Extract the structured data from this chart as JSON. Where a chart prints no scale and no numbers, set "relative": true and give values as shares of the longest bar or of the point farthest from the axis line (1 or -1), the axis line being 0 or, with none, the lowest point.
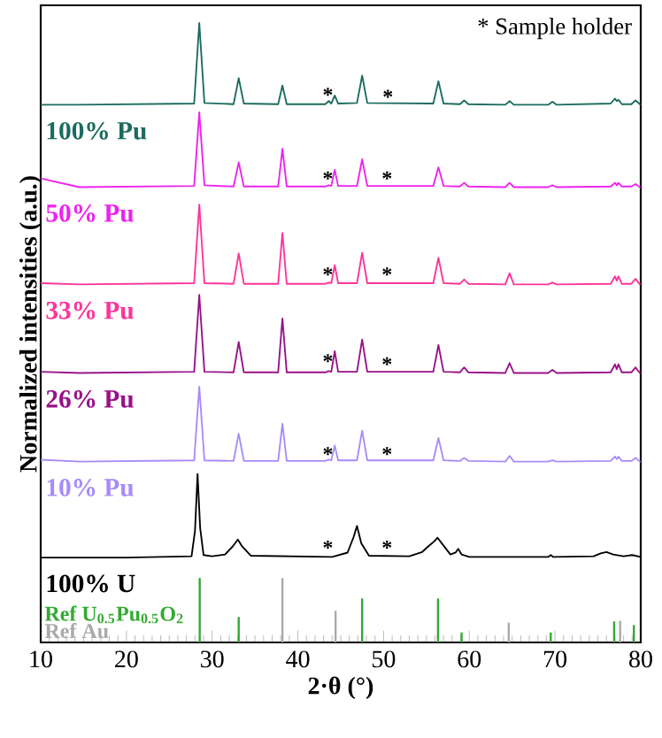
{
  "chart_data": {
    "type": "line",
    "relative": true,
    "xlabel": "2·θ (°)",
    "ylabel": "Normalized intensities (a.u.)",
    "xlim": [
      10,
      80
    ],
    "xticks": [
      10,
      20,
      30,
      40,
      50,
      60,
      70,
      80
    ],
    "grid": false,
    "marker": "none",
    "line_style": "solid",
    "x": [
      10,
      14.5,
      27.9,
      28.5,
      29.1,
      32.5,
      33.1,
      33.7,
      37.7,
      38.2,
      38.7,
      43.2,
      43.6,
      43.9,
      44.3,
      44.7,
      46.9,
      47.5,
      48.1,
      55.8,
      56.4,
      57.0,
      58.9,
      59.4,
      59.9,
      64.2,
      64.7,
      65.2,
      69.2,
      69.7,
      70.2,
      76.5,
      77.0,
      77.2,
      77.4,
      77.8,
      78.9,
      79.4,
      79.9,
      80
    ],
    "series": [
      {
        "name": "100% Pu",
        "color": "#1b6b5e",
        "values": [
          0.868,
          0.868,
          0.87,
          1.0,
          0.871,
          0.869,
          0.911,
          0.87,
          0.869,
          0.899,
          0.869,
          0.869,
          0.874,
          0.87,
          0.883,
          0.87,
          0.871,
          0.915,
          0.871,
          0.87,
          0.906,
          0.87,
          0.869,
          0.875,
          0.869,
          0.868,
          0.874,
          0.868,
          0.868,
          0.873,
          0.868,
          0.87,
          0.878,
          0.874,
          0.876,
          0.869,
          0.869,
          0.875,
          0.869,
          0.869
        ]
      },
      {
        "name": "50% Pu",
        "color": "#ee22ee",
        "values": [
          0.749,
          0.735,
          0.737,
          0.856,
          0.738,
          0.736,
          0.775,
          0.736,
          0.736,
          0.797,
          0.736,
          0.736,
          0.738,
          0.737,
          0.763,
          0.737,
          0.737,
          0.78,
          0.737,
          0.737,
          0.767,
          0.737,
          0.736,
          0.742,
          0.736,
          0.735,
          0.742,
          0.735,
          0.735,
          0.738,
          0.735,
          0.736,
          0.742,
          0.738,
          0.742,
          0.736,
          0.736,
          0.74,
          0.735,
          0.735
        ]
      },
      {
        "name": "33% Pu",
        "color": "#ff3399",
        "values": [
          0.58,
          0.578,
          0.58,
          0.707,
          0.58,
          0.579,
          0.628,
          0.579,
          0.579,
          0.661,
          0.579,
          0.579,
          0.581,
          0.58,
          0.609,
          0.58,
          0.58,
          0.629,
          0.58,
          0.58,
          0.621,
          0.58,
          0.579,
          0.586,
          0.579,
          0.578,
          0.596,
          0.578,
          0.578,
          0.581,
          0.578,
          0.579,
          0.591,
          0.584,
          0.591,
          0.579,
          0.579,
          0.587,
          0.578,
          0.578
        ]
      },
      {
        "name": "26% Pu",
        "color": "#991188",
        "values": [
          0.437,
          0.435,
          0.437,
          0.561,
          0.437,
          0.436,
          0.485,
          0.436,
          0.436,
          0.523,
          0.436,
          0.436,
          0.438,
          0.437,
          0.47,
          0.437,
          0.437,
          0.489,
          0.437,
          0.437,
          0.48,
          0.437,
          0.436,
          0.444,
          0.436,
          0.435,
          0.451,
          0.435,
          0.435,
          0.44,
          0.435,
          0.436,
          0.449,
          0.441,
          0.449,
          0.436,
          0.436,
          0.444,
          0.435,
          0.435
        ]
      },
      {
        "name": "10% Pu",
        "color": "#a78bfa",
        "values": [
          0.295,
          0.292,
          0.294,
          0.413,
          0.294,
          0.293,
          0.337,
          0.293,
          0.293,
          0.353,
          0.293,
          0.293,
          0.295,
          0.294,
          0.318,
          0.294,
          0.294,
          0.342,
          0.294,
          0.294,
          0.33,
          0.294,
          0.293,
          0.298,
          0.293,
          0.292,
          0.301,
          0.292,
          0.292,
          0.294,
          0.292,
          0.293,
          0.3,
          0.296,
          0.3,
          0.293,
          0.293,
          0.298,
          0.292,
          0.292
        ]
      },
      {
        "name": "100% U",
        "color": "#000000",
        "x": [
          10,
          20,
          27.6,
          28.0,
          28.3,
          28.6,
          29.0,
          30.0,
          31.5,
          32.4,
          33.0,
          33.5,
          34.5,
          44.0,
          45.8,
          46.5,
          46.9,
          47.4,
          48.3,
          53.0,
          54.5,
          55.3,
          55.9,
          56.3,
          56.9,
          57.8,
          58.4,
          58.7,
          59.1,
          60,
          69.2,
          69.5,
          69.8,
          74.5,
          75.4,
          76.0,
          76.8,
          78.0,
          79.0,
          80
        ],
        "values": [
          0.137,
          0.137,
          0.139,
          0.18,
          0.272,
          0.185,
          0.141,
          0.139,
          0.142,
          0.155,
          0.166,
          0.155,
          0.14,
          0.138,
          0.145,
          0.17,
          0.188,
          0.16,
          0.14,
          0.139,
          0.146,
          0.156,
          0.163,
          0.169,
          0.158,
          0.142,
          0.145,
          0.151,
          0.142,
          0.138,
          0.138,
          0.141,
          0.138,
          0.139,
          0.144,
          0.146,
          0.142,
          0.139,
          0.141,
          0.138
        ]
      },
      {
        "name": "Ref U$_{0.5}$Pu$_{0.5}$O$_{2}$",
        "type": "bar",
        "color": "#33aa33",
        "x": [
          28.55,
          33.1,
          47.5,
          56.35,
          59.1,
          69.5,
          76.9,
          79.2
        ],
        "values": [
          0.104,
          0.041,
          0.071,
          0.071,
          0.016,
          0.016,
          0.034,
          0.028
        ]
      },
      {
        "name": "Ref Au",
        "type": "bar",
        "color": "#aaaaaa",
        "x": [
          38.2,
          44.4,
          64.6,
          77.6
        ],
        "values": [
          0.104,
          0.051,
          0.032,
          0.035
        ]
      }
    ],
    "annotations": [
      "* Sample holder",
      {
        "text": "*",
        "x": 43.5,
        "y": 0.884
      },
      {
        "text": "*",
        "x": 50.5,
        "y": 0.881
      },
      {
        "text": "*",
        "x": 43.5,
        "y": 0.749
      },
      {
        "text": "*",
        "x": 50.4,
        "y": 0.749
      },
      {
        "text": "*",
        "x": 43.5,
        "y": 0.594
      },
      {
        "text": "*",
        "x": 50.4,
        "y": 0.594
      },
      {
        "text": "*",
        "x": 43.5,
        "y": 0.454
      },
      {
        "text": "*",
        "x": 50.4,
        "y": 0.449
      },
      {
        "text": "*",
        "x": 43.5,
        "y": 0.304
      },
      {
        "text": "*",
        "x": 50.4,
        "y": 0.304
      },
      {
        "text": "*",
        "x": 43.5,
        "y": 0.153
      },
      {
        "text": "*",
        "x": 50.4,
        "y": 0.153
      }
    ]
  }
}
